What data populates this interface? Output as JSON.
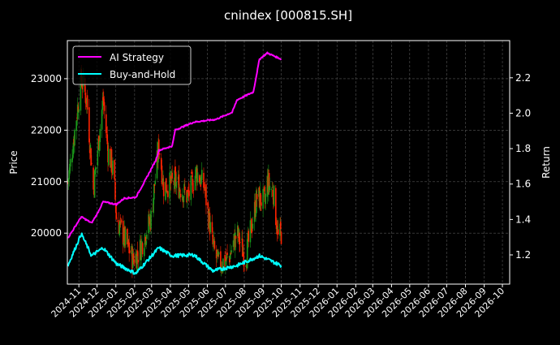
{
  "chart_data": {
    "type": "line",
    "title": "cnindex [000815.SH]",
    "xlabel": "",
    "ylabel": "Price",
    "ylabel_right": "Return",
    "xlim": [
      "2024-10-13",
      "2026-10-13"
    ],
    "ylim": [
      19010,
      23740
    ],
    "ylim_right": [
      1.035,
      2.41
    ],
    "grid": true,
    "legend_position": "top-left",
    "x_ticks": [
      "2024-11",
      "2024-12",
      "2025-01",
      "2025-02",
      "2025-03",
      "2025-04",
      "2025-05",
      "2025-06",
      "2025-07",
      "2025-08",
      "2025-09",
      "2025-10",
      "2025-11",
      "2025-12",
      "2026-01",
      "2026-02",
      "2026-03",
      "2026-04",
      "2026-05",
      "2026-06",
      "2026-07",
      "2026-08",
      "2026-09",
      "2026-10"
    ],
    "y_ticks": [
      "20000",
      "21000",
      "22000",
      "23000"
    ],
    "y_ticks_right": [
      "1.2",
      "1.4",
      "1.6",
      "1.8",
      "2.0",
      "2.2"
    ],
    "colors": {
      "up": "#1a9a1a",
      "down": "#ff2200",
      "ai": "#ff00ff",
      "bh": "#00ffff",
      "grid": "#555555"
    },
    "price_close": {
      "dates": [
        "2024-10-14",
        "2024-10-23",
        "2024-11-05",
        "2024-11-14",
        "2024-11-25",
        "2024-12-11",
        "2024-12-19",
        "2024-12-28",
        "2025-01-02",
        "2025-01-15",
        "2025-01-29",
        "2025-02-07",
        "2025-02-28",
        "2025-03-13",
        "2025-03-21",
        "2025-04-09",
        "2025-04-30",
        "2025-05-14",
        "2025-05-27",
        "2025-06-10",
        "2025-06-19",
        "2025-07-06",
        "2025-07-20",
        "2025-08-03",
        "2025-08-22",
        "2025-09-04",
        "2025-09-08",
        "2025-09-18",
        "2025-09-26",
        "2025-10-01"
      ],
      "values": [
        21000,
        21800,
        23000,
        22580,
        20850,
        22600,
        21600,
        21200,
        20300,
        19900,
        19500,
        19600,
        20300,
        21700,
        20900,
        21000,
        20700,
        21200,
        20900,
        19750,
        19400,
        19500,
        20000,
        19500,
        20700,
        20600,
        21000,
        20800,
        19900,
        20000
      ]
    },
    "series": [
      {
        "name": "AI Strategy",
        "axis": "right",
        "dates": [
          "2024-10-14",
          "2024-11-05",
          "2024-11-22",
          "2024-12-01",
          "2024-12-11",
          "2025-01-02",
          "2025-01-15",
          "2025-02-03",
          "2025-02-20",
          "2025-03-08",
          "2025-03-13",
          "2025-04-04",
          "2025-04-09",
          "2025-05-10",
          "2025-06-15",
          "2025-07-12",
          "2025-07-20",
          "2025-08-16",
          "2025-08-26",
          "2025-09-08",
          "2025-10-01"
        ],
        "values": [
          1.296,
          1.415,
          1.38,
          1.43,
          1.5,
          1.485,
          1.52,
          1.525,
          1.63,
          1.735,
          1.79,
          1.815,
          1.905,
          1.95,
          1.965,
          2.005,
          2.075,
          2.12,
          2.305,
          2.34,
          2.305
        ]
      },
      {
        "name": "Buy-and-Hold",
        "axis": "right",
        "dates": [
          "2024-10-14",
          "2024-11-05",
          "2024-11-22",
          "2024-12-11",
          "2025-01-02",
          "2025-02-03",
          "2025-03-13",
          "2025-04-04",
          "2025-05-10",
          "2025-06-10",
          "2025-07-20",
          "2025-08-26",
          "2025-10-01"
        ],
        "values": [
          1.14,
          1.32,
          1.195,
          1.24,
          1.15,
          1.095,
          1.24,
          1.195,
          1.2,
          1.11,
          1.14,
          1.195,
          1.14
        ]
      }
    ]
  }
}
